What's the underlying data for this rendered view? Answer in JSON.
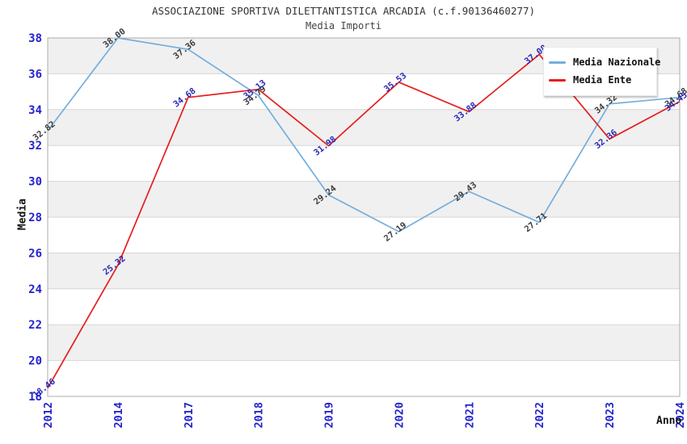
{
  "chart_data": {
    "type": "line",
    "title": "ASSOCIAZIONE SPORTIVA DILETTANTISTICA ARCADIA (c.f.90136460277)",
    "subtitle": "Media Importi",
    "xlabel": "Anno",
    "ylabel": "Media",
    "categories": [
      "2012",
      "2014",
      "2017",
      "2018",
      "2019",
      "2020",
      "2021",
      "2022",
      "2023",
      "2024"
    ],
    "series": [
      {
        "name": "Media Nazionale",
        "color": "#74aede",
        "label_color": "#3c3c3c",
        "values": [
          32.82,
          38.0,
          37.36,
          34.79,
          29.24,
          27.19,
          29.43,
          27.71,
          34.32,
          34.68
        ]
      },
      {
        "name": "Media Ente",
        "color": "#e71d1d",
        "label_color": "#2929b8",
        "values": [
          18.46,
          25.32,
          34.68,
          35.13,
          31.98,
          35.53,
          33.88,
          37.08,
          32.36,
          34.45
        ]
      }
    ],
    "ylim": [
      18,
      38
    ],
    "ytick_step": 2,
    "grid": true,
    "legend_position": "top-right",
    "band_colors": [
      "#ffffff",
      "#f0f0f0"
    ],
    "grid_color": "#d6d6d6",
    "plot_border_color": "#adadad",
    "axis_tick_color": "#2424cc",
    "point_label_rotation_deg": -38
  }
}
